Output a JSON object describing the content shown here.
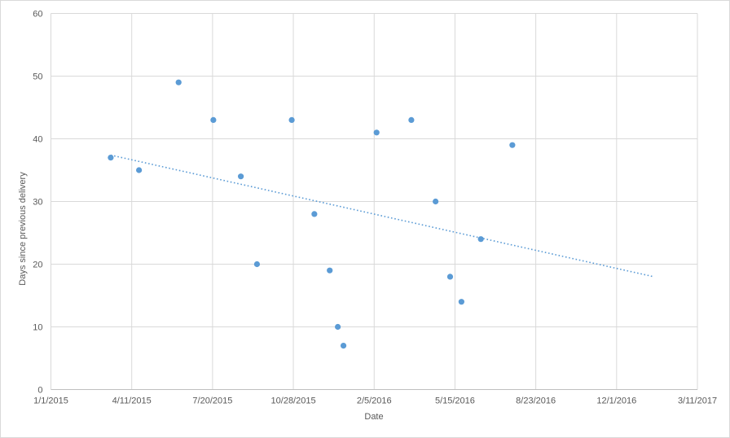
{
  "colors": {
    "marker": "#5B9BD5",
    "trendline": "#5B9BD5",
    "gridline": "#D9D9D9",
    "axis_line": "#BFBFBF",
    "text": "#595959",
    "background": "#FFFFFF",
    "frame_border": "#D9D9D9"
  },
  "chart_data": {
    "type": "scatter",
    "title": "",
    "xlabel": "Date",
    "ylabel": "Days since previous delivery",
    "grid": true,
    "legend": false,
    "x_axis": {
      "tick_labels": [
        "1/1/2015",
        "4/11/2015",
        "7/20/2015",
        "10/28/2015",
        "2/5/2016",
        "5/15/2016",
        "8/23/2016",
        "12/1/2016",
        "3/11/2017"
      ],
      "tick_interval_days": 100
    },
    "y_axis": {
      "min": 0,
      "max": 60,
      "ticks": [
        0,
        10,
        20,
        30,
        40,
        50,
        60
      ]
    },
    "series": [
      {
        "marker_color": "#5B9BD5",
        "points": [
          {
            "date": "3/16/2015",
            "value": 37
          },
          {
            "date": "4/20/2015",
            "value": 35
          },
          {
            "date": "6/8/2015",
            "value": 49
          },
          {
            "date": "7/21/2015",
            "value": 43
          },
          {
            "date": "8/24/2015",
            "value": 34
          },
          {
            "date": "9/13/2015",
            "value": 20
          },
          {
            "date": "10/26/2015",
            "value": 43
          },
          {
            "date": "11/23/2015",
            "value": 28
          },
          {
            "date": "12/12/2015",
            "value": 19
          },
          {
            "date": "12/22/2015",
            "value": 10
          },
          {
            "date": "12/29/2015",
            "value": 7
          },
          {
            "date": "2/8/2016",
            "value": 41
          },
          {
            "date": "3/22/2016",
            "value": 43
          },
          {
            "date": "4/21/2016",
            "value": 30
          },
          {
            "date": "5/9/2016",
            "value": 18
          },
          {
            "date": "5/23/2016",
            "value": 14
          },
          {
            "date": "6/16/2016",
            "value": 24
          },
          {
            "date": "7/25/2016",
            "value": 39
          }
        ]
      }
    ],
    "trendline": {
      "style": "dotted",
      "color": "#5B9BD5",
      "start": {
        "date": "3/16/2015",
        "value": 37.4
      },
      "end": {
        "date": "1/16/2017",
        "value": 18
      }
    }
  }
}
